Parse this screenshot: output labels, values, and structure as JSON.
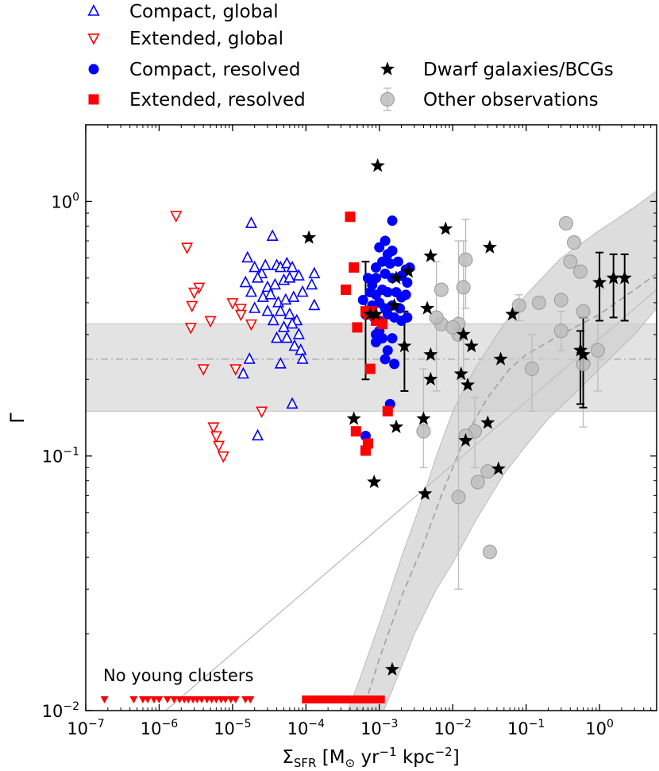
{
  "chart_data": {
    "type": "scatter",
    "xscale": "log",
    "yscale": "log",
    "xlim": [
      1e-07,
      6
    ],
    "ylim": [
      0.01,
      2
    ],
    "xlabel": {
      "base": "Σ",
      "sub": "SFR",
      "units_a": " [M",
      "units_sun": "⊙",
      "units_b": " yr",
      "exp1": "−1",
      "units_c": " kpc",
      "exp2": "−2",
      "close": "]"
    },
    "ylabel": "Γ",
    "x_ticks": [
      {
        "v": 1e-07,
        "base": "10",
        "exp": "−7"
      },
      {
        "v": 1e-06,
        "base": "10",
        "exp": "−6"
      },
      {
        "v": 1e-05,
        "base": "10",
        "exp": "−5"
      },
      {
        "v": 0.0001,
        "base": "10",
        "exp": "−4"
      },
      {
        "v": 0.001,
        "base": "10",
        "exp": "−3"
      },
      {
        "v": 0.01,
        "base": "10",
        "exp": "−2"
      },
      {
        "v": 0.1,
        "base": "10",
        "exp": "−1"
      },
      {
        "v": 1,
        "base": "10",
        "exp": "0"
      }
    ],
    "y_ticks": [
      {
        "v": 0.01,
        "base": "10",
        "exp": "−2"
      },
      {
        "v": 0.1,
        "base": "10",
        "exp": "−1"
      },
      {
        "v": 1,
        "base": "10",
        "exp": "0"
      }
    ],
    "annotation": "No young clusters",
    "band": {
      "low": 0.15,
      "high": 0.33,
      "mid": 0.24
    },
    "model_band": {
      "mid": [
        [
          0.00045,
          0.0082
        ],
        [
          0.0007,
          0.0115
        ],
        [
          0.001,
          0.016
        ],
        [
          0.002,
          0.028
        ],
        [
          0.004,
          0.045
        ],
        [
          0.007,
          0.07
        ],
        [
          0.01,
          0.09
        ],
        [
          0.015,
          0.12
        ],
        [
          0.03,
          0.17
        ],
        [
          0.06,
          0.22
        ],
        [
          0.1,
          0.25
        ],
        [
          0.3,
          0.3
        ],
        [
          1,
          0.36
        ],
        [
          3,
          0.45
        ],
        [
          6,
          0.52
        ]
      ],
      "upper": [
        [
          0.0003,
          0.0085
        ],
        [
          0.0005,
          0.0125
        ],
        [
          0.001,
          0.022
        ],
        [
          0.002,
          0.04
        ],
        [
          0.004,
          0.07
        ],
        [
          0.006,
          0.1
        ],
        [
          0.01,
          0.15
        ],
        [
          0.02,
          0.22
        ],
        [
          0.05,
          0.33
        ],
        [
          0.1,
          0.43
        ],
        [
          0.3,
          0.6
        ],
        [
          1,
          0.77
        ],
        [
          3,
          0.95
        ],
        [
          6,
          1.1
        ]
      ],
      "lower": [
        [
          0.0009,
          0.0085
        ],
        [
          0.0015,
          0.012
        ],
        [
          0.003,
          0.02
        ],
        [
          0.006,
          0.03
        ],
        [
          0.01,
          0.038
        ],
        [
          0.02,
          0.055
        ],
        [
          0.05,
          0.085
        ],
        [
          0.1,
          0.11
        ],
        [
          0.2,
          0.14
        ],
        [
          0.5,
          0.18
        ],
        [
          1,
          0.22
        ],
        [
          3,
          0.3
        ],
        [
          6,
          0.38
        ]
      ]
    },
    "linear_fit": [
      [
        1e-06,
        0.0095
      ],
      [
        6,
        0.45
      ]
    ],
    "series": [
      {
        "name": "Compact, global",
        "marker": "triangle-up-open",
        "color": "#0000ff",
        "points": [
          [
            1.8e-05,
            0.82
          ],
          [
            3.5e-05,
            0.73
          ],
          [
            1.6e-05,
            0.6
          ],
          [
            2e-05,
            0.55
          ],
          [
            2.5e-05,
            0.52
          ],
          [
            2.8e-05,
            0.56
          ],
          [
            4e-05,
            0.56
          ],
          [
            4.5e-05,
            0.55
          ],
          [
            5.5e-05,
            0.57
          ],
          [
            6.5e-05,
            0.55
          ],
          [
            1.5e-05,
            0.48
          ],
          [
            2.2e-05,
            0.5
          ],
          [
            3e-05,
            0.46
          ],
          [
            3.8e-05,
            0.47
          ],
          [
            5e-05,
            0.49
          ],
          [
            6e-05,
            0.5
          ],
          [
            8e-05,
            0.51
          ],
          [
            0.00013,
            0.52
          ],
          [
            1.8e-05,
            0.44
          ],
          [
            2.6e-05,
            0.42
          ],
          [
            3.3e-05,
            0.43
          ],
          [
            4.2e-05,
            0.4
          ],
          [
            5.3e-05,
            0.41
          ],
          [
            6.8e-05,
            0.42
          ],
          [
            9e-05,
            0.44
          ],
          [
            0.00012,
            0.47
          ],
          [
            2e-05,
            0.38
          ],
          [
            3e-05,
            0.37
          ],
          [
            4.5e-05,
            0.37
          ],
          [
            6e-05,
            0.36
          ],
          [
            7.5e-05,
            0.34
          ],
          [
            0.00013,
            0.39
          ],
          [
            3.6e-05,
            0.34
          ],
          [
            5e-05,
            0.32
          ],
          [
            6.5e-05,
            0.33
          ],
          [
            8e-05,
            0.3
          ],
          [
            4e-05,
            0.29
          ],
          [
            5.5e-05,
            0.29
          ],
          [
            7e-05,
            0.27
          ],
          [
            8.5e-05,
            0.26
          ],
          [
            1.7e-05,
            0.24
          ],
          [
            9e-05,
            0.24
          ],
          [
            4.5e-05,
            0.23
          ],
          [
            1.4e-05,
            0.21
          ],
          [
            6.5e-05,
            0.16
          ],
          [
            2.2e-05,
            0.12
          ]
        ]
      },
      {
        "name": "Extended, global",
        "marker": "triangle-down-open",
        "color": "#ff0000",
        "points": [
          [
            1.7e-06,
            0.88
          ],
          [
            2.4e-06,
            0.66
          ],
          [
            3.5e-06,
            0.46
          ],
          [
            3e-06,
            0.44
          ],
          [
            1e-05,
            0.4
          ],
          [
            2.8e-06,
            0.39
          ],
          [
            1.3e-05,
            0.38
          ],
          [
            1.3e-05,
            0.36
          ],
          [
            5e-06,
            0.34
          ],
          [
            1.8e-05,
            0.33
          ],
          [
            2.7e-06,
            0.32
          ],
          [
            4e-06,
            0.22
          ],
          [
            1.1e-05,
            0.22
          ],
          [
            2.5e-05,
            0.15
          ],
          [
            5.5e-06,
            0.13
          ],
          [
            6e-06,
            0.12
          ],
          [
            6.5e-06,
            0.11
          ],
          [
            7.5e-06,
            0.1
          ]
        ]
      },
      {
        "name": "Compact, resolved",
        "marker": "circle-filled",
        "color": "#0000ff",
        "points": [
          [
            0.0015,
            0.84
          ],
          [
            0.0012,
            0.7
          ],
          [
            0.001,
            0.66
          ],
          [
            0.0013,
            0.62
          ],
          [
            0.0015,
            0.64
          ],
          [
            0.0009,
            0.55
          ],
          [
            0.0011,
            0.58
          ],
          [
            0.0014,
            0.57
          ],
          [
            0.0018,
            0.58
          ],
          [
            0.0023,
            0.54
          ],
          [
            0.0026,
            0.55
          ],
          [
            0.0007,
            0.5
          ],
          [
            0.0008,
            0.47
          ],
          [
            0.0009,
            0.5
          ],
          [
            0.0012,
            0.52
          ],
          [
            0.0015,
            0.5
          ],
          [
            0.002,
            0.51
          ],
          [
            0.0024,
            0.48
          ],
          [
            0.00075,
            0.44
          ],
          [
            0.0009,
            0.43
          ],
          [
            0.0011,
            0.45
          ],
          [
            0.0013,
            0.44
          ],
          [
            0.0017,
            0.44
          ],
          [
            0.002,
            0.42
          ],
          [
            0.0023,
            0.43
          ],
          [
            0.0006,
            0.41
          ],
          [
            0.0008,
            0.39
          ],
          [
            0.001,
            0.4
          ],
          [
            0.0012,
            0.38
          ],
          [
            0.0015,
            0.39
          ],
          [
            0.0019,
            0.38
          ],
          [
            0.00065,
            0.36
          ],
          [
            0.00085,
            0.35
          ],
          [
            0.001,
            0.34
          ],
          [
            0.0013,
            0.36
          ],
          [
            0.0016,
            0.35
          ],
          [
            0.002,
            0.34
          ],
          [
            0.0024,
            0.35
          ],
          [
            0.0009,
            0.3
          ],
          [
            0.0011,
            0.29
          ],
          [
            0.0015,
            0.29
          ],
          [
            0.0013,
            0.26
          ],
          [
            0.0009,
            0.28
          ],
          [
            0.0012,
            0.24
          ],
          [
            0.0016,
            0.23
          ],
          [
            0.0014,
            0.16
          ],
          [
            0.00065,
            0.12
          ],
          [
            0.001,
            0.31
          ]
        ]
      },
      {
        "name": "Extended, resolved",
        "marker": "square-filled",
        "color": "#ff0000",
        "points": [
          [
            0.0004,
            0.87
          ],
          [
            0.00045,
            0.55
          ],
          [
            0.00035,
            0.45
          ],
          [
            0.00065,
            0.37
          ],
          [
            0.0008,
            0.37
          ],
          [
            0.0007,
            0.36
          ],
          [
            0.0009,
            0.34
          ],
          [
            0.0011,
            0.33
          ],
          [
            0.0005,
            0.32
          ],
          [
            0.0013,
            0.15
          ],
          [
            0.00075,
            0.22
          ],
          [
            0.00048,
            0.125
          ],
          [
            0.0007,
            0.112
          ],
          [
            0.00065,
            0.105
          ]
        ]
      },
      {
        "name": "Dwarf galaxies/BCGs",
        "marker": "star",
        "color": "#000000",
        "points": [
          [
            0.00095,
            1.38
          ],
          [
            0.00011,
            0.72
          ],
          [
            0.008,
            0.78
          ],
          [
            0.032,
            0.66
          ],
          [
            0.005,
            0.61
          ],
          [
            0.0017,
            0.5
          ],
          [
            0.0025,
            0.53
          ],
          [
            0.0016,
            0.39
          ],
          [
            0.0045,
            0.38
          ],
          [
            0.00075,
            0.36
          ],
          [
            0.0009,
            0.36
          ],
          [
            0.065,
            0.36
          ],
          [
            0.014,
            0.3
          ],
          [
            0.018,
            0.27
          ],
          [
            0.0022,
            0.27
          ],
          [
            0.005,
            0.25
          ],
          [
            0.045,
            0.24
          ],
          [
            0.013,
            0.21
          ],
          [
            0.005,
            0.2
          ],
          [
            0.016,
            0.19
          ],
          [
            0.00045,
            0.14
          ],
          [
            0.004,
            0.14
          ],
          [
            0.03,
            0.135
          ],
          [
            0.0017,
            0.13
          ],
          [
            0.015,
            0.115
          ],
          [
            0.042,
            0.089
          ],
          [
            0.00085,
            0.079
          ],
          [
            0.0042,
            0.071
          ],
          [
            0.0015,
            0.0145
          ],
          [
            1.0,
            0.48
          ],
          [
            1.55,
            0.5
          ],
          [
            2.2,
            0.5
          ],
          [
            0.55,
            0.26
          ],
          [
            0.6,
            0.25
          ]
        ]
      },
      {
        "name": "Other observations",
        "marker": "circle-gray",
        "color": "#aaaaaa",
        "points": [
          [
            0.35,
            0.82
          ],
          [
            0.45,
            0.69
          ],
          [
            0.4,
            0.58
          ],
          [
            0.55,
            0.53
          ],
          [
            0.6,
            0.37
          ],
          [
            0.3,
            0.41
          ],
          [
            0.15,
            0.4
          ],
          [
            0.08,
            0.39
          ],
          [
            0.012,
            0.33
          ],
          [
            0.007,
            0.33
          ],
          [
            0.012,
            0.3
          ],
          [
            0.3,
            0.31
          ],
          [
            0.01,
            0.32
          ],
          [
            0.95,
            0.26
          ],
          [
            0.6,
            0.23
          ],
          [
            0.12,
            0.22
          ],
          [
            0.02,
            0.125
          ],
          [
            0.015,
            0.12
          ],
          [
            0.012,
            0.069
          ],
          [
            0.032,
            0.042
          ],
          [
            0.022,
            0.079
          ],
          [
            0.03,
            0.087
          ],
          [
            0.015,
            0.59
          ],
          [
            0.014,
            0.46
          ],
          [
            0.007,
            0.45
          ],
          [
            0.004,
            0.125
          ],
          [
            0.006,
            0.35
          ]
        ]
      }
    ],
    "error_bars_black": [
      {
        "x": 0.00065,
        "lo": 0.2,
        "hi": 0.58
      },
      {
        "x": 0.0022,
        "lo": 0.18,
        "hi": 0.37
      },
      {
        "x": 1.0,
        "lo": 0.34,
        "hi": 0.63
      },
      {
        "x": 1.55,
        "lo": 0.35,
        "hi": 0.62
      },
      {
        "x": 2.2,
        "lo": 0.34,
        "hi": 0.62
      },
      {
        "x": 0.55,
        "lo": 0.16,
        "hi": 0.31
      },
      {
        "x": 0.6,
        "lo": 0.155,
        "hi": 0.35
      }
    ],
    "error_bars_gray": [
      {
        "x": 0.015,
        "lo": 0.38,
        "hi": 0.85
      },
      {
        "x": 0.014,
        "lo": 0.2,
        "hi": 0.7
      },
      {
        "x": 0.006,
        "lo": 0.18,
        "hi": 0.58
      },
      {
        "x": 0.012,
        "lo": 0.03,
        "hi": 0.7
      },
      {
        "x": 0.004,
        "lo": 0.09,
        "hi": 0.22
      },
      {
        "x": 0.12,
        "lo": 0.15,
        "hi": 0.3
      },
      {
        "x": 0.6,
        "lo": 0.13,
        "hi": 0.35
      },
      {
        "x": 0.95,
        "lo": 0.18,
        "hi": 0.35
      },
      {
        "x": 0.02,
        "lo": 0.09,
        "hi": 0.17
      },
      {
        "x": 0.3,
        "lo": 0.26,
        "hi": 0.37
      },
      {
        "x": 0.08,
        "lo": 0.34,
        "hi": 0.43
      }
    ],
    "legend": {
      "placement": "top",
      "entries": [
        {
          "label": "Compact, global",
          "marker": "triangle-up-open",
          "color": "#0000ff"
        },
        {
          "label": "Extended, global",
          "marker": "triangle-down-open",
          "color": "#ff0000"
        },
        {
          "label": "Compact, resolved",
          "marker": "circle-filled",
          "color": "#0000ff"
        },
        {
          "label": "Extended, resolved",
          "marker": "square-filled",
          "color": "#ff0000"
        },
        {
          "label": "Dwarf galaxies/BCGs",
          "marker": "star",
          "color": "#000000"
        },
        {
          "label": "Other observations",
          "marker": "circle-gray",
          "color": "#aaaaaa"
        }
      ]
    },
    "upper_limits_extended_global_x": [
      1.8e-07,
      4.5e-07,
      6e-07,
      7e-07,
      8.5e-07,
      1e-06,
      1.3e-06,
      1.6e-06,
      1.9e-06,
      2.2e-06,
      2.5e-06,
      2.9e-06,
      3.3e-06,
      3.8e-06,
      4.5e-06,
      5.2e-06,
      6e-06,
      7e-06,
      8e-06,
      9.5e-06,
      1.1e-05,
      1.5e-05,
      1.75e-05
    ],
    "upper_limits_extended_resolved_x": [
      0.0001,
      0.00012,
      0.00014,
      0.00016,
      0.00018,
      0.0002,
      0.00023,
      0.00026,
      0.0003,
      0.00034,
      0.00038,
      0.00043,
      0.00048,
      0.00054,
      0.0006,
      0.00068,
      0.00076,
      0.00085,
      0.00095,
      0.00105
    ]
  }
}
